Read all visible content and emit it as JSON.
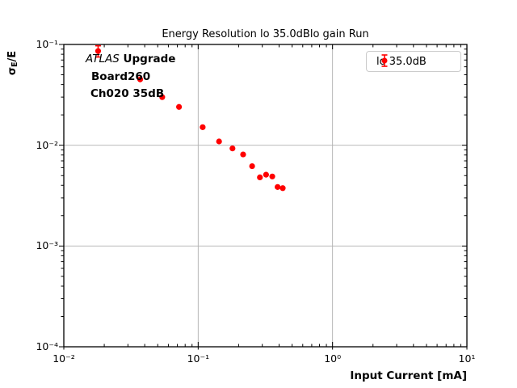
{
  "title": "Energy Resolution lo 35.0dBlo gain Run",
  "annotation": {
    "experiment": "ATLAS",
    "experiment_label": " Upgrade",
    "line2": "Board260",
    "line3": "Ch020 35dB"
  },
  "axes": {
    "xlabel": "Input Current [mA]",
    "ylabel_sigma": "σ",
    "ylabel_sub": "E",
    "ylabel_rest": "/E",
    "x_ticks": [
      {
        "label": "10⁻²",
        "value": 0.01
      },
      {
        "label": "10⁻¹",
        "value": 0.1
      },
      {
        "label": "10⁰",
        "value": 1
      },
      {
        "label": "10¹",
        "value": 10
      }
    ],
    "y_ticks": [
      {
        "label": "10⁻¹",
        "value": 0.1
      },
      {
        "label": "10⁻²",
        "value": 0.01
      },
      {
        "label": "10⁻³",
        "value": 0.001
      },
      {
        "label": "10⁻⁴",
        "value": 0.0001
      }
    ]
  },
  "legend": {
    "label": "lo 35.0dB",
    "marker_color": "#ff0000"
  },
  "colors": {
    "marker": "#ff0000",
    "grid": "#b0b0b0",
    "frame": "#000000",
    "legend_border": "#cccccc"
  },
  "chart_data": {
    "type": "scatter",
    "title": "Energy Resolution lo 35.0dBlo gain Run",
    "xlabel": "Input Current [mA]",
    "ylabel": "σ_E/E",
    "x_scale": "log",
    "y_scale": "log",
    "xlim": [
      0.01,
      10
    ],
    "ylim": [
      0.0001,
      0.1
    ],
    "grid": true,
    "legend_position": "upper right",
    "series": [
      {
        "name": "lo 35.0dB",
        "color": "#ff0000",
        "marker": "circle-with-errorbars",
        "x": [
          0.018,
          0.037,
          0.054,
          0.072,
          0.108,
          0.143,
          0.18,
          0.216,
          0.252,
          0.288,
          0.32,
          0.356,
          0.39,
          0.426
        ],
        "y": [
          0.086,
          0.045,
          0.03,
          0.024,
          0.0151,
          0.0109,
          0.0093,
          0.0081,
          0.0062,
          0.0048,
          0.0051,
          0.0049,
          0.00385,
          0.00375
        ],
        "yerr": [
          0.011,
          0,
          0,
          0,
          0,
          0,
          0,
          0,
          0,
          0,
          0,
          0,
          0,
          0
        ]
      }
    ]
  }
}
